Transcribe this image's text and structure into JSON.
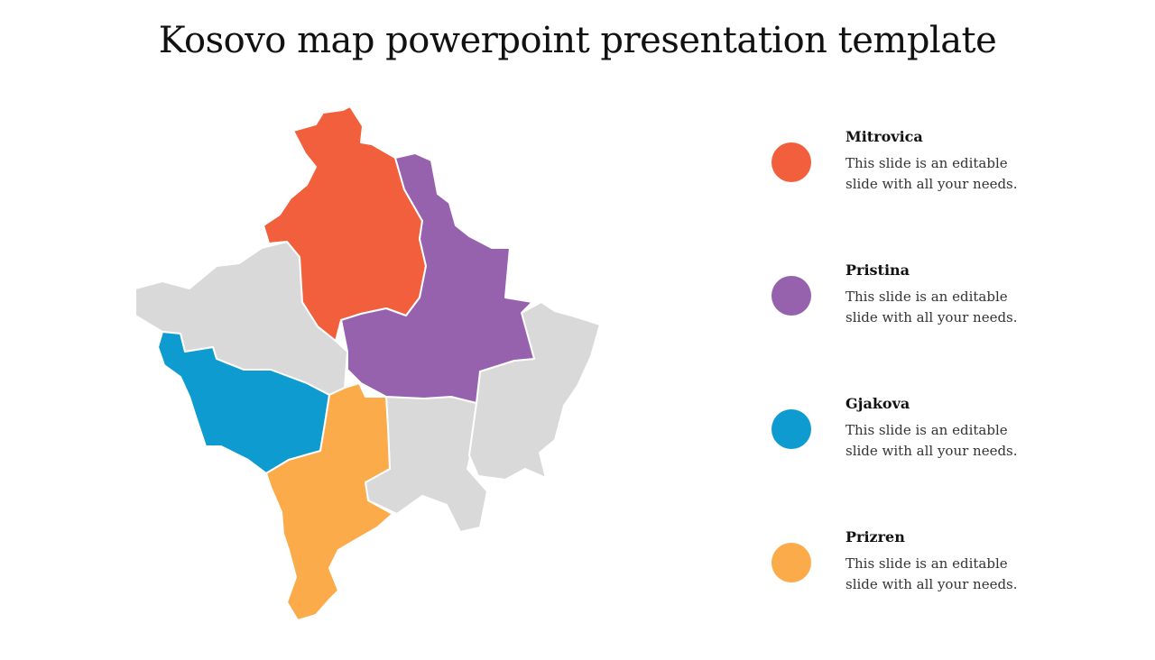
{
  "title": "Kosovo map powerpoint presentation template",
  "map": {
    "base_color": "#d9d9d9",
    "regions": [
      {
        "name": "Mitrovica",
        "color": "#f25f3c"
      },
      {
        "name": "Pristina",
        "color": "#9662ad"
      },
      {
        "name": "Gjakova",
        "color": "#0e9bd0"
      },
      {
        "name": "Prizren",
        "color": "#fbab4a"
      }
    ]
  },
  "legend": [
    {
      "name": "Mitrovica",
      "description": "This slide is an editable slide with all your needs.",
      "color": "#f25f3c"
    },
    {
      "name": "Pristina",
      "description": "This slide is an editable slide with all your needs.",
      "color": "#9662ad"
    },
    {
      "name": "Gjakova",
      "description": "This slide is an editable slide with all your needs.",
      "color": "#0e9bd0"
    },
    {
      "name": "Prizren",
      "description": "This slide is an editable slide with all your needs.",
      "color": "#fbab4a"
    }
  ]
}
